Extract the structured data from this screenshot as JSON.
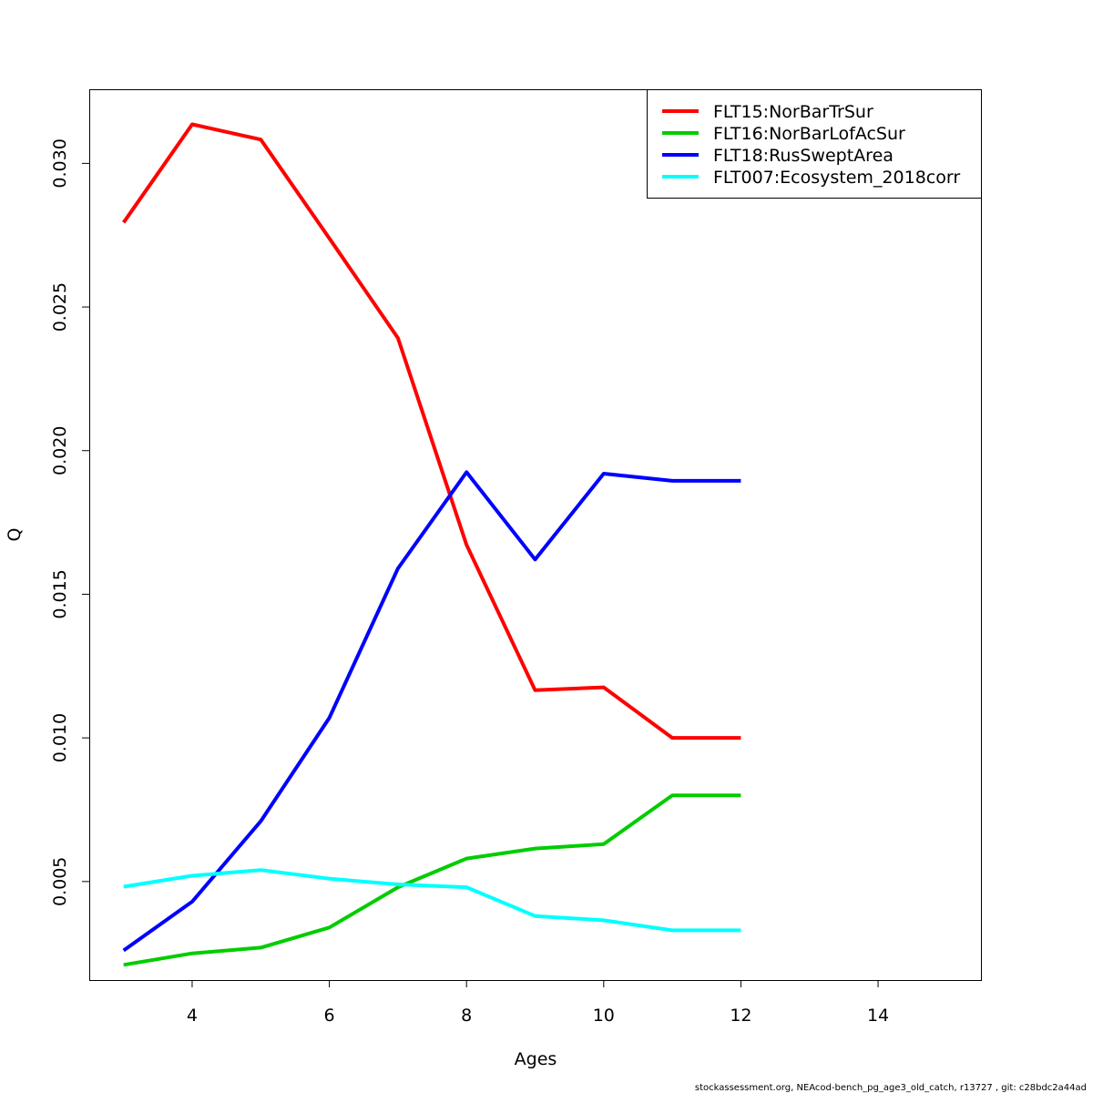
{
  "chart_data": {
    "type": "line",
    "title": "",
    "xlabel": "Ages",
    "ylabel": "Q",
    "xlim": [
      2.5,
      15.5
    ],
    "ylim": [
      0.00157,
      0.03258
    ],
    "x_ticks": [
      4,
      6,
      8,
      10,
      12,
      14
    ],
    "x_tick_labels": [
      "4",
      "6",
      "8",
      "10",
      "12",
      "14"
    ],
    "y_ticks": [
      0.005,
      0.01,
      0.015,
      0.02,
      0.025,
      0.03
    ],
    "y_tick_labels": [
      "0.005",
      "0.010",
      "0.015",
      "0.020",
      "0.025",
      "0.030"
    ],
    "legend_position": "top-right",
    "grid": false,
    "series": [
      {
        "name": "FLT15:NorBarTrSur",
        "color": "#ff0000",
        "x": [
          3,
          4,
          5,
          6,
          7,
          8,
          9,
          10,
          11,
          12
        ],
        "values": [
          0.02794,
          0.03136,
          0.03083,
          0.02739,
          0.02392,
          0.01672,
          0.01166,
          0.01176,
          0.01,
          0.01
        ]
      },
      {
        "name": "FLT16:NorBarLofAcSur",
        "color": "#00cd00",
        "x": [
          3,
          4,
          5,
          6,
          7,
          8,
          9,
          10,
          11,
          12
        ],
        "values": [
          0.0021,
          0.0025,
          0.0027,
          0.0034,
          0.0048,
          0.0058,
          0.00615,
          0.0063,
          0.008,
          0.008
        ]
      },
      {
        "name": "FLT18:RusSweptArea",
        "color": "#0000ff",
        "x": [
          3,
          4,
          5,
          6,
          7,
          8,
          9,
          10,
          11,
          12
        ],
        "values": [
          0.0026,
          0.0043,
          0.0071,
          0.0107,
          0.0159,
          0.01925,
          0.01621,
          0.0192,
          0.01895,
          0.01895
        ]
      },
      {
        "name": "FLT007:Ecosystem_2018corr",
        "color": "#00ffff",
        "x": [
          3,
          4,
          5,
          6,
          7,
          8,
          9,
          10,
          11,
          12
        ],
        "values": [
          0.00482,
          0.0052,
          0.0054,
          0.0051,
          0.0049,
          0.0048,
          0.0038,
          0.00365,
          0.0033,
          0.0033
        ]
      }
    ]
  },
  "footer": "stockassessment.org, NEAcod-bench_pg_age3_old_catch, r13727 , git: c28bdc2a44ad"
}
